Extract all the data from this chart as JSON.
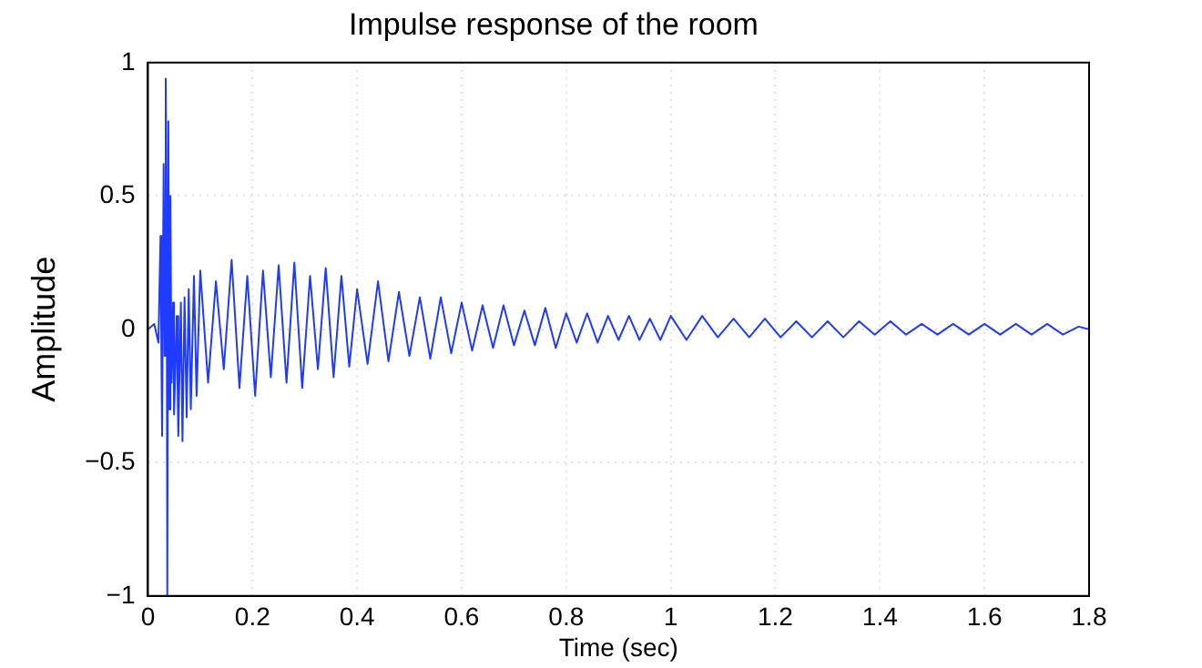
{
  "chart_data": {
    "type": "line",
    "title": "Impulse response of the room",
    "xlabel": "Time (sec)",
    "ylabel": "Amplitude",
    "x": [
      0,
      0.012,
      0.02,
      0.024,
      0.027,
      0.03,
      0.032,
      0.034,
      0.036,
      0.037,
      0.039,
      0.041,
      0.043,
      0.045,
      0.048,
      0.05,
      0.055,
      0.058,
      0.063,
      0.066,
      0.07,
      0.074,
      0.078,
      0.082,
      0.088,
      0.093,
      0.1,
      0.115,
      0.13,
      0.145,
      0.16,
      0.175,
      0.19,
      0.205,
      0.22,
      0.235,
      0.25,
      0.265,
      0.28,
      0.295,
      0.31,
      0.325,
      0.34,
      0.355,
      0.37,
      0.385,
      0.4,
      0.42,
      0.44,
      0.46,
      0.48,
      0.5,
      0.52,
      0.54,
      0.56,
      0.58,
      0.6,
      0.62,
      0.64,
      0.66,
      0.68,
      0.7,
      0.72,
      0.74,
      0.76,
      0.78,
      0.8,
      0.82,
      0.84,
      0.86,
      0.88,
      0.9,
      0.92,
      0.94,
      0.96,
      0.98,
      1.0,
      1.03,
      1.06,
      1.09,
      1.12,
      1.15,
      1.18,
      1.21,
      1.24,
      1.27,
      1.3,
      1.33,
      1.36,
      1.39,
      1.42,
      1.45,
      1.48,
      1.51,
      1.54,
      1.57,
      1.6,
      1.63,
      1.66,
      1.69,
      1.72,
      1.75,
      1.78,
      1.8
    ],
    "series": [
      {
        "color": "#1f3bff",
        "values": [
          0,
          0.02,
          -0.05,
          0.35,
          -0.4,
          0.62,
          -0.1,
          0.94,
          0.2,
          -1,
          0.78,
          -0.3,
          0.5,
          -0.2,
          0.1,
          -0.32,
          0.05,
          -0.4,
          0.1,
          -0.42,
          0.12,
          -0.33,
          0.15,
          -0.3,
          0.2,
          -0.25,
          0.22,
          -0.2,
          0.18,
          -0.15,
          0.26,
          -0.22,
          0.2,
          -0.25,
          0.22,
          -0.18,
          0.24,
          -0.2,
          0.25,
          -0.22,
          0.2,
          -0.15,
          0.23,
          -0.18,
          0.2,
          -0.14,
          0.15,
          -0.13,
          0.18,
          -0.12,
          0.14,
          -0.1,
          0.12,
          -0.11,
          0.12,
          -0.09,
          0.1,
          -0.08,
          0.09,
          -0.07,
          0.09,
          -0.06,
          0.07,
          -0.06,
          0.08,
          -0.07,
          0.06,
          -0.05,
          0.06,
          -0.05,
          0.05,
          -0.04,
          0.05,
          -0.04,
          0.04,
          -0.04,
          0.05,
          -0.04,
          0.05,
          -0.03,
          0.04,
          -0.03,
          0.04,
          -0.03,
          0.03,
          -0.03,
          0.03,
          -0.03,
          0.03,
          -0.02,
          0.03,
          -0.02,
          0.02,
          -0.02,
          0.02,
          -0.02,
          0.02,
          -0.02,
          0.02,
          -0.02,
          0.02,
          -0.02,
          0.01,
          0
        ]
      }
    ],
    "xlim": [
      0,
      1.8
    ],
    "xticks": [
      0,
      0.2,
      0.4,
      0.6,
      0.8,
      1,
      1.2,
      1.4,
      1.6,
      1.8
    ],
    "ylim": [
      -1,
      1
    ],
    "yticks": [
      -1,
      -0.5,
      0,
      0.5,
      1
    ],
    "grid": true,
    "legend": false,
    "marker": "none",
    "line_style": "solid"
  }
}
